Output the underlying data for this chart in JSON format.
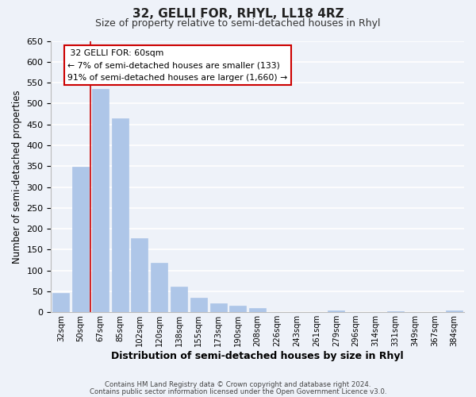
{
  "title": "32, GELLI FOR, RHYL, LL18 4RZ",
  "subtitle": "Size of property relative to semi-detached houses in Rhyl",
  "xlabel": "Distribution of semi-detached houses by size in Rhyl",
  "ylabel": "Number of semi-detached properties",
  "bar_labels": [
    "32sqm",
    "50sqm",
    "67sqm",
    "85sqm",
    "102sqm",
    "120sqm",
    "138sqm",
    "155sqm",
    "173sqm",
    "190sqm",
    "208sqm",
    "226sqm",
    "243sqm",
    "261sqm",
    "279sqm",
    "296sqm",
    "314sqm",
    "331sqm",
    "349sqm",
    "367sqm",
    "384sqm"
  ],
  "bar_values": [
    47,
    348,
    535,
    464,
    178,
    118,
    62,
    35,
    22,
    15,
    10,
    0,
    0,
    0,
    5,
    0,
    0,
    3,
    0,
    0,
    4
  ],
  "bar_color": "#aec6e8",
  "marker_label": "32 GELLI FOR: 60sqm",
  "marker_smaller_pct": "7%",
  "marker_smaller_n": "133",
  "marker_larger_pct": "91%",
  "marker_larger_n": "1,660",
  "red_line_x": 1.5,
  "ylim": [
    0,
    650
  ],
  "yticks": [
    0,
    50,
    100,
    150,
    200,
    250,
    300,
    350,
    400,
    450,
    500,
    550,
    600,
    650
  ],
  "footnote1": "Contains HM Land Registry data © Crown copyright and database right 2024.",
  "footnote2": "Contains public sector information licensed under the Open Government Licence v3.0.",
  "bg_color": "#eef2f9",
  "plot_bg_color": "#eef2f9",
  "grid_color": "#ffffff",
  "box_edge_color": "#cc0000",
  "box_face_color": "#ffffff",
  "title_fontsize": 11,
  "subtitle_fontsize": 9
}
